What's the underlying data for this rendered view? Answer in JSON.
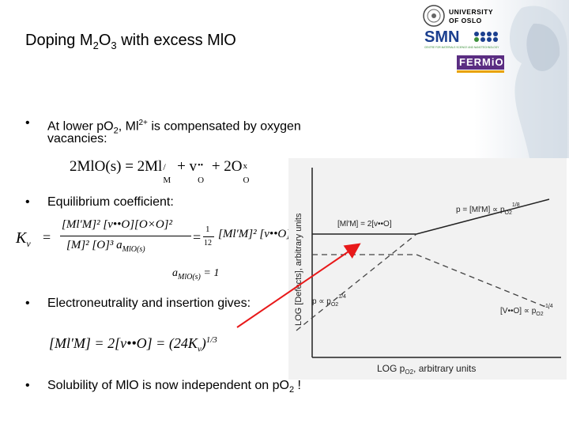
{
  "title": {
    "pre": "Doping M",
    "sub1": "2",
    "mid": "O",
    "sub2": "3",
    "post": " with excess MlO"
  },
  "logos": {
    "university_line1": "UNIVERSITY",
    "university_line2": "OF OSLO",
    "smn": "SMN",
    "smn_tagline": "CENTRE FOR MATERIALS SCIENCE AND NANOTECHNOLOGY",
    "fermio": "FERMiO"
  },
  "bullets": {
    "b1_line1_a": "At lower pO",
    "b1_line1_sub": "2",
    "b1_line1_b": ", Ml",
    "b1_line1_sup": "2+",
    "b1_line1_c": " is compensated by oxygen",
    "b1_line2": "vacancies:",
    "b2": "Equilibrium coefficient:",
    "b3": "Electroneutrality and insertion gives:",
    "b4_a": "Solubility of MlO is now independent on pO",
    "b4_sub": "2",
    "b4_b": " !"
  },
  "bullet_symbol": "•",
  "equations": {
    "reaction": "2MlO(s) = 2Ml",
    "reaction_sub1": "M",
    "reaction_sup1": "/",
    "reaction_plus": " + v",
    "reaction_sub2": "O",
    "reaction_sup2": "••",
    "reaction_rest": " + 2O",
    "reaction_sub3": "O",
    "reaction_sup3": "x",
    "kv_lhs": "K",
    "kv_lhs_sub": "v",
    "kv_eq": "=",
    "kv_num": "[Ml′M]² [v••O][O×O]²",
    "kv_den": "[M]² [O]³ a",
    "kv_den_sub": "MlO(s)",
    "kv_approx": "=",
    "kv_frac_num": "1",
    "kv_frac_den": "12",
    "kv_rhs": "[Ml′M]² [v••O]",
    "amio_a": "a",
    "amio_sub": "MlO(s)",
    "amio_eq": " = 1",
    "neutral_lhs": "[Ml′M] = 2[v••O] = (24K",
    "neutral_sub": "v",
    "neutral_close": ")",
    "neutral_exp": "1/3"
  },
  "plot": {
    "ylabel": "LOG [Defects], arbitrary units",
    "xlabel_a": "LOG p",
    "xlabel_sub": "O2",
    "xlabel_b": ", arbitrary units",
    "label_eq1": "[Ml′M] = 2[v••O]",
    "label_p18": "p = [Ml′M] ∝ p",
    "label_p18_sub": "O2",
    "label_p18_exp": "1/8",
    "label_p14": "p ∝ p",
    "label_p14_sub": "O2",
    "label_p14_exp": "1/4",
    "label_v14": "[V••O] ∝ p",
    "label_v14_sub": "O2",
    "label_v14_exp": "-1/4"
  },
  "colors": {
    "arrow": "#e8191a",
    "plot_bg": "#f2f2f2",
    "smn_blue": "#1b3f8f",
    "smn_green": "#3b8f3a",
    "fermio_purple": "#5a2d82"
  }
}
